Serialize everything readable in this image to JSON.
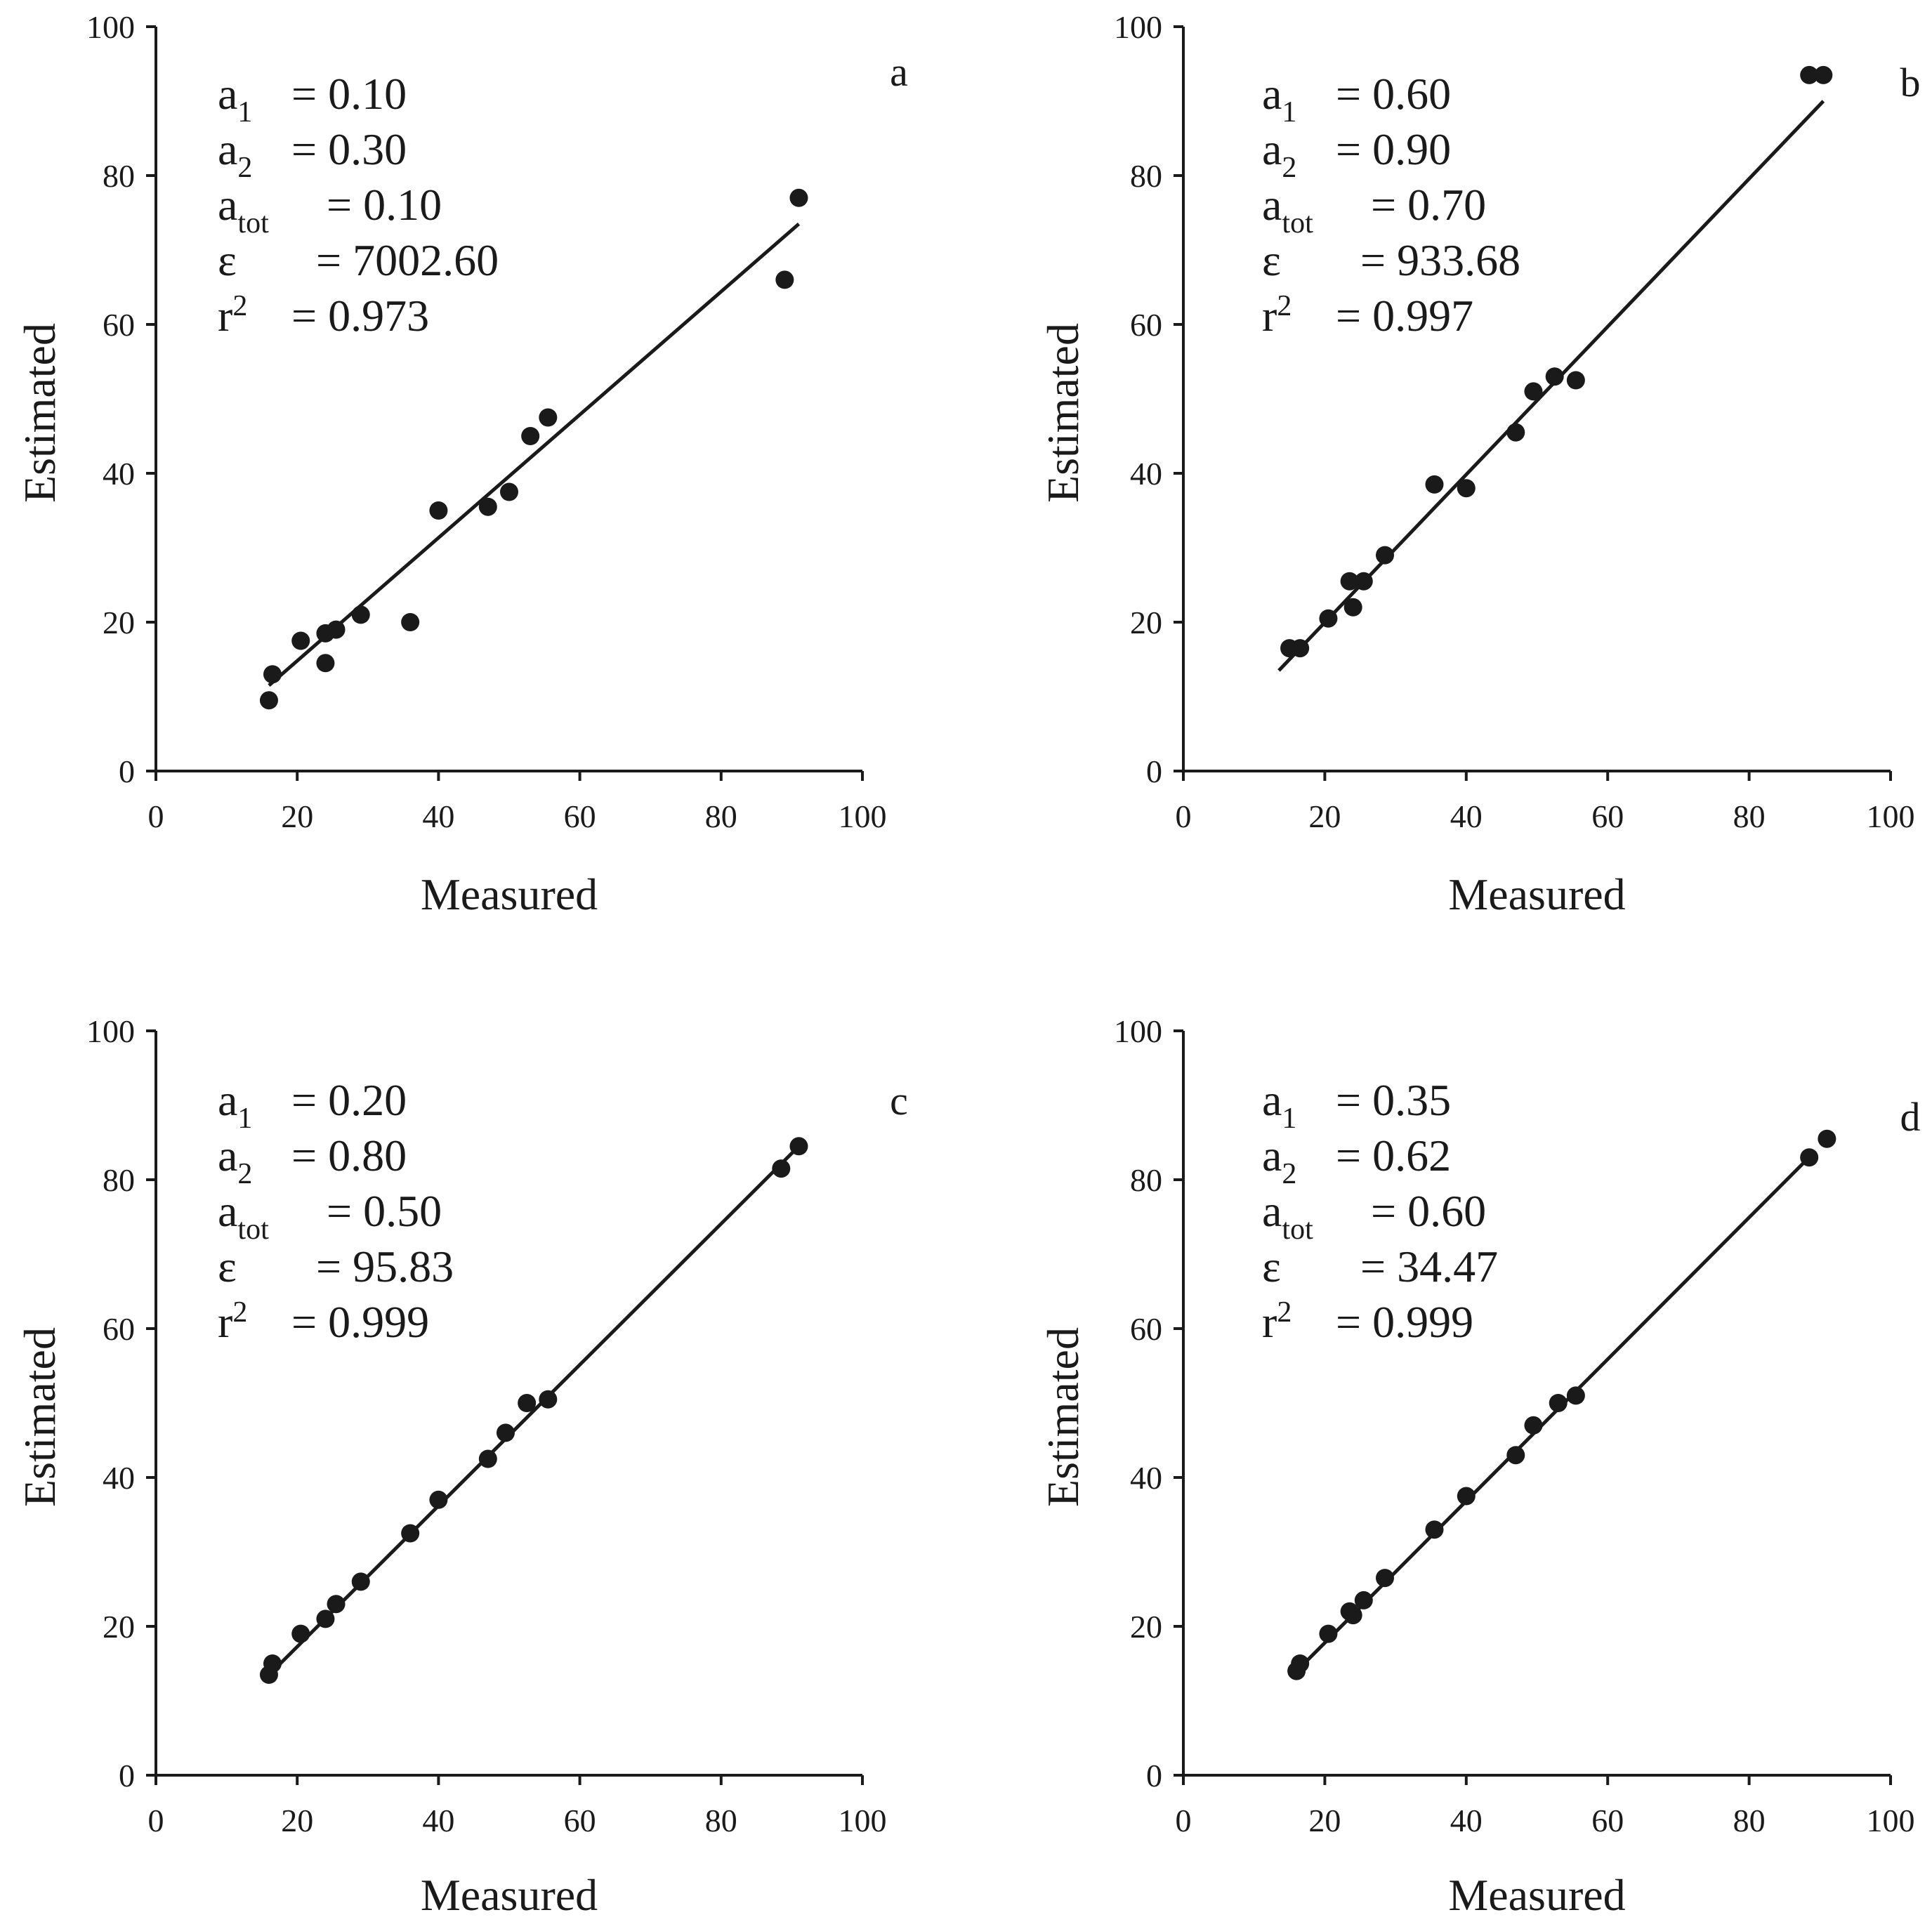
{
  "chart_data": [
    {
      "type": "scatter",
      "panel": "a",
      "xlabel": "Measured",
      "ylabel": "Estimated",
      "xlim": [
        0,
        100
      ],
      "ylim": [
        0,
        100
      ],
      "xticks": [
        "0",
        "20",
        "40",
        "60",
        "80",
        "100"
      ],
      "yticks": [
        "0",
        "20",
        "40",
        "60",
        "80",
        "100"
      ],
      "annotations": {
        "a1_label": "a",
        "a1_sub": "1",
        "a1_value": "= 0.10",
        "a2_label": "a",
        "a2_sub": "2",
        "a2_value": "= 0.30",
        "atot_label": "a",
        "atot_sub": "tot",
        "atot_value": "= 0.10",
        "eps_label": "ε",
        "eps_value": "= 7002.60",
        "r2_label": "r",
        "r2_sup": "2",
        "r2_value": "= 0.973"
      },
      "fit_line": {
        "x": [
          16,
          91
        ],
        "y": [
          11.5,
          73.5
        ]
      },
      "points": {
        "x": [
          16,
          16.5,
          20.5,
          24,
          24,
          25.5,
          29,
          36,
          40,
          47,
          50,
          53,
          55.5,
          89,
          91
        ],
        "y": [
          9.5,
          13,
          17.5,
          14.5,
          18.5,
          19,
          21,
          20,
          35,
          35.5,
          37.5,
          45,
          47.5,
          66,
          77
        ]
      }
    },
    {
      "type": "scatter",
      "panel": "b",
      "xlabel": "Measured",
      "ylabel": "Estimated",
      "xlim": [
        0,
        100
      ],
      "ylim": [
        0,
        100
      ],
      "xticks": [
        "0",
        "20",
        "40",
        "60",
        "80",
        "100"
      ],
      "yticks": [
        "0",
        "20",
        "40",
        "60",
        "80",
        "100"
      ],
      "annotations": {
        "a1_label": "a",
        "a1_sub": "1",
        "a1_value": "= 0.60",
        "a2_label": "a",
        "a2_sub": "2",
        "a2_value": "= 0.90",
        "atot_label": "a",
        "atot_sub": "tot",
        "atot_value": "= 0.70",
        "eps_label": "ε",
        "eps_value": "= 933.68",
        "r2_label": "r",
        "r2_sup": "2",
        "r2_value": "= 0.997"
      },
      "fit_line": {
        "x": [
          13.5,
          90.5
        ],
        "y": [
          13.5,
          90
        ]
      },
      "points": {
        "x": [
          15,
          16.5,
          20.5,
          23.5,
          24,
          25.5,
          28.5,
          35.5,
          40,
          47,
          49.5,
          52.5,
          55.5,
          88.5,
          90.5
        ],
        "y": [
          16.5,
          16.5,
          20.5,
          25.5,
          22,
          25.5,
          29,
          38.5,
          38,
          45.5,
          51,
          53,
          52.5,
          93.5,
          93.5
        ]
      }
    },
    {
      "type": "scatter",
      "panel": "c",
      "xlabel": "Measured",
      "ylabel": "Estimated",
      "xlim": [
        0,
        100
      ],
      "ylim": [
        0,
        100
      ],
      "xticks": [
        "0",
        "20",
        "40",
        "60",
        "80",
        "100"
      ],
      "yticks": [
        "0",
        "20",
        "40",
        "60",
        "80",
        "100"
      ],
      "annotations": {
        "a1_label": "a",
        "a1_sub": "1",
        "a1_value": "= 0.20",
        "a2_label": "a",
        "a2_sub": "2",
        "a2_value": "= 0.80",
        "atot_label": "a",
        "atot_sub": "tot",
        "atot_value": "= 0.50",
        "eps_label": "ε",
        "eps_value": "= 95.83",
        "r2_label": "r",
        "r2_sup": "2",
        "r2_value": "= 0.999"
      },
      "fit_line": {
        "x": [
          15.5,
          91
        ],
        "y": [
          13,
          84.5
        ]
      },
      "points": {
        "x": [
          16,
          16.5,
          20.5,
          24,
          25.5,
          29,
          36,
          40,
          47,
          49.5,
          52.5,
          55.5,
          88.5,
          91
        ],
        "y": [
          13.5,
          15,
          19,
          21,
          23,
          26,
          32.5,
          37,
          42.5,
          46,
          50,
          50.5,
          81.5,
          84.5
        ]
      }
    },
    {
      "type": "scatter",
      "panel": "d",
      "xlabel": "Measured",
      "ylabel": "Estimated",
      "xlim": [
        0,
        100
      ],
      "ylim": [
        0,
        100
      ],
      "xticks": [
        "0",
        "20",
        "40",
        "60",
        "80",
        "100"
      ],
      "yticks": [
        "0",
        "20",
        "40",
        "60",
        "80",
        "100"
      ],
      "annotations": {
        "a1_label": "a",
        "a1_sub": "1",
        "a1_value": "= 0.35",
        "a2_label": "a",
        "a2_sub": "2",
        "a2_value": "= 0.62",
        "atot_label": "a",
        "atot_sub": "tot",
        "atot_value": "= 0.60",
        "eps_label": "ε",
        "eps_value": "= 34.47",
        "r2_label": "r",
        "r2_sup": "2",
        "r2_value": "= 0.999"
      },
      "fit_line": {
        "x": [
          15.5,
          89
        ],
        "y": [
          13.5,
          83.5
        ]
      },
      "points": {
        "x": [
          16,
          16.5,
          20.5,
          23.5,
          24,
          25.5,
          28.5,
          35.5,
          40,
          47,
          49.5,
          53,
          55.5,
          88.5,
          91
        ],
        "y": [
          14,
          15,
          19,
          22,
          21.5,
          23.5,
          26.5,
          33,
          37.5,
          43,
          47,
          50,
          51,
          83,
          85.5
        ]
      }
    }
  ]
}
